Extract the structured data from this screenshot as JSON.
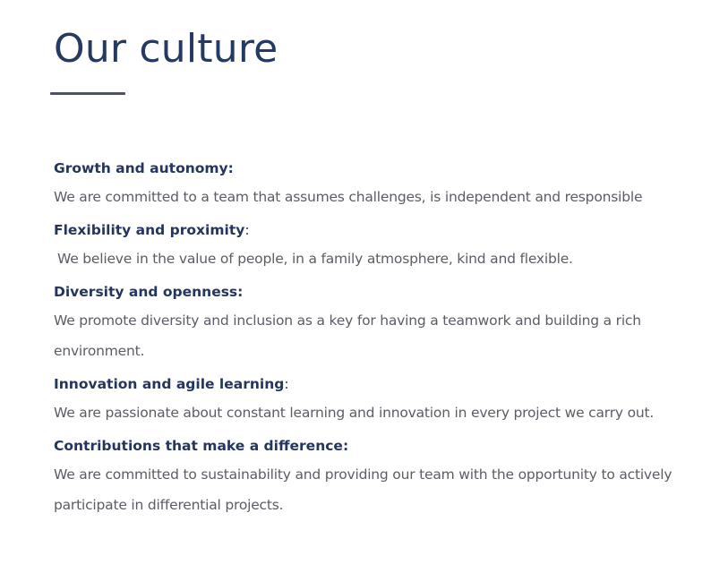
{
  "page": {
    "title": "Our culture"
  },
  "sections": [
    {
      "heading": "Growth and autonomy",
      "colon": ":",
      "text": "We are committed to a team that assumes challenges, is independent and responsible"
    },
    {
      "heading": "Flexibility and proximity",
      "colon": ":",
      "text": "We believe in the value of people, in a family atmosphere, kind and flexible."
    },
    {
      "heading": "Diversity and openness",
      "colon": ":",
      "text": "We promote diversity and inclusion as a key for having a teamwork and building a rich environment."
    },
    {
      "heading": "Innovation and agile learning",
      "colon": ":",
      "text": "We are passionate about constant learning and innovation in every project we carry out."
    },
    {
      "heading": "Contributions that make a difference",
      "colon": ":",
      "text": "We are committed to sustainability and providing our team with the opportunity to actively participate in differential projects."
    }
  ],
  "colors": {
    "title": "#253a63",
    "heading": "#24365e",
    "body": "#5c5c66",
    "rule": "#4a5066"
  }
}
